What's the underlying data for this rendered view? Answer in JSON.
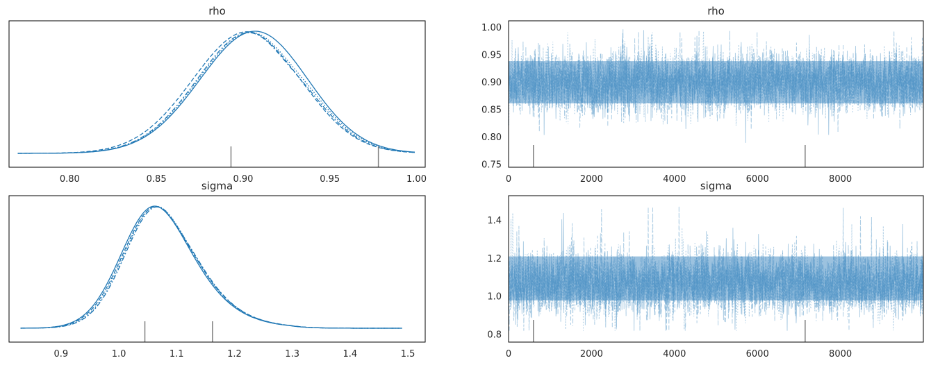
{
  "figure": {
    "background": "#ffffff",
    "line_color": "#1f77b4",
    "trace_color": "#4a90c4",
    "marker_color": "#808080"
  },
  "chart_data": [
    {
      "type": "line",
      "kind": "posterior-density",
      "title": "rho",
      "xlim": [
        0.765,
        1.005
      ],
      "xticks": [
        0.8,
        0.85,
        0.9,
        0.95,
        1.0
      ],
      "xtick_labels": [
        "0.80",
        "0.85",
        "0.90",
        "0.95",
        "1.00"
      ],
      "yticks": [],
      "grid": false,
      "chain_styles": [
        "solid",
        "dashed",
        "dashdot",
        "dotted"
      ],
      "chains": [
        {
          "peak": 0.907,
          "sd": 0.0303,
          "skew_left": 1.05,
          "dip": 0.0
        },
        {
          "peak": 0.903,
          "sd": 0.0305,
          "skew_left": 1.05,
          "dip": 0.02
        },
        {
          "peak": 0.905,
          "sd": 0.03,
          "skew_left": 1.05,
          "dip": 0.06
        },
        {
          "peak": 0.906,
          "sd": 0.0302,
          "skew_left": 1.05,
          "dip": 0.05
        }
      ],
      "x_range": [
        0.77,
        0.999
      ],
      "rug_markers": [
        0.893,
        0.978
      ]
    },
    {
      "type": "line",
      "kind": "trace",
      "title": "rho",
      "xlim": [
        0,
        10000
      ],
      "ylim": [
        0.745,
        1.012
      ],
      "xticks": [
        0,
        2000,
        4000,
        6000,
        8000
      ],
      "xtick_labels": [
        "0",
        "2000",
        "4000",
        "6000",
        "8000"
      ],
      "yticks": [
        0.75,
        0.8,
        0.85,
        0.9,
        0.95,
        1.0
      ],
      "ytick_labels": [
        "0.75",
        "0.80",
        "0.85",
        "0.90",
        "0.95",
        "1.00"
      ],
      "grid": false,
      "center": 0.9,
      "core_band": [
        0.845,
        0.955
      ],
      "extremes": [
        0.772,
        0.998
      ],
      "rug_markers": [
        600,
        7150
      ]
    },
    {
      "type": "line",
      "kind": "posterior-density",
      "title": "sigma",
      "xlim": [
        0.81,
        1.53
      ],
      "xticks": [
        0.9,
        1.0,
        1.1,
        1.2,
        1.3,
        1.4,
        1.5
      ],
      "xtick_labels": [
        "0.9",
        "1.0",
        "1.1",
        "1.2",
        "1.3",
        "1.4",
        "1.5"
      ],
      "yticks": [],
      "grid": false,
      "chain_styles": [
        "solid",
        "dashed",
        "dashdot",
        "dotted"
      ],
      "chains": [
        {
          "peak": 1.062,
          "sd": 0.058,
          "skew_right": 1.45,
          "dip": 0.0
        },
        {
          "peak": 1.065,
          "sd": 0.058,
          "skew_right": 1.45,
          "dip": 0.02
        },
        {
          "peak": 1.068,
          "sd": 0.057,
          "skew_right": 1.45,
          "dip": 0.03
        },
        {
          "peak": 1.066,
          "sd": 0.057,
          "skew_right": 1.45,
          "dip": 0.01
        }
      ],
      "x_range": [
        0.83,
        1.49
      ],
      "rug_markers": [
        1.045,
        1.162
      ]
    },
    {
      "type": "line",
      "kind": "trace",
      "title": "sigma",
      "xlim": [
        0,
        10000
      ],
      "ylim": [
        0.76,
        1.53
      ],
      "xticks": [
        0,
        2000,
        4000,
        6000,
        8000
      ],
      "xtick_labels": [
        "0",
        "2000",
        "4000",
        "6000",
        "8000"
      ],
      "yticks": [
        0.8,
        1.0,
        1.2,
        1.4
      ],
      "ytick_labels": [
        "0.8",
        "1.0",
        "1.2",
        "1.4"
      ],
      "grid": false,
      "center": 1.07,
      "core_band": [
        0.93,
        1.26
      ],
      "extremes": [
        0.82,
        1.49
      ],
      "rug_markers": [
        600,
        7150
      ]
    }
  ]
}
